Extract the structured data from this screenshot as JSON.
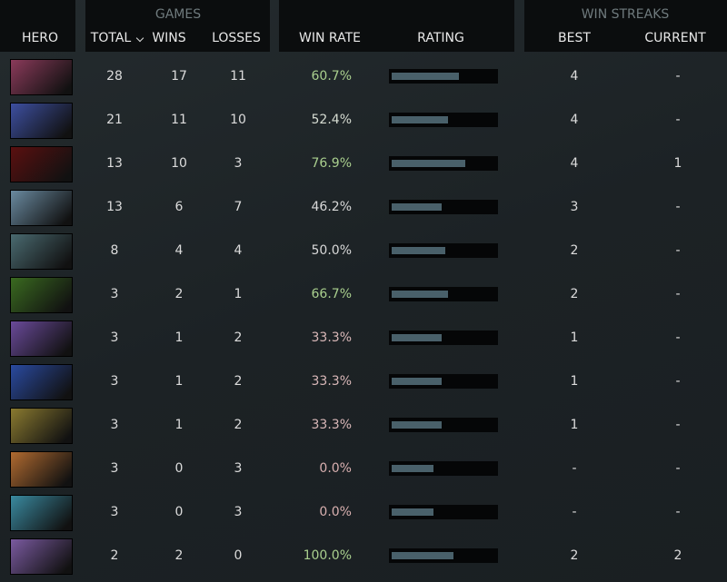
{
  "header": {
    "groups": [
      "GAMES",
      "WIN STREAKS"
    ],
    "columns": [
      "HERO",
      "TOTAL",
      "WINS",
      "LOSSES",
      "WIN RATE",
      "RATING",
      "BEST",
      "CURRENT"
    ]
  },
  "table": {
    "rows": [
      {
        "total": 28,
        "wins": 17,
        "losses": 11,
        "win_rate": "60.7%",
        "win_rate_color": "#a9cf8e",
        "rating": 0.63,
        "best": "4",
        "current": "-"
      },
      {
        "total": 21,
        "wins": 11,
        "losses": 10,
        "win_rate": "52.4%",
        "win_rate_color": "#d6dcd2",
        "rating": 0.53,
        "best": "4",
        "current": "-"
      },
      {
        "total": 13,
        "wins": 10,
        "losses": 3,
        "win_rate": "76.9%",
        "win_rate_color": "#a9cf8e",
        "rating": 0.69,
        "best": "4",
        "current": "1"
      },
      {
        "total": 13,
        "wins": 6,
        "losses": 7,
        "win_rate": "46.2%",
        "win_rate_color": "#d8d8d8",
        "rating": 0.47,
        "best": "3",
        "current": "-"
      },
      {
        "total": 8,
        "wins": 4,
        "losses": 4,
        "win_rate": "50.0%",
        "win_rate_color": "#d8d8d8",
        "rating": 0.5,
        "best": "2",
        "current": "-"
      },
      {
        "total": 3,
        "wins": 2,
        "losses": 1,
        "win_rate": "66.7%",
        "win_rate_color": "#a9cf8e",
        "rating": 0.53,
        "best": "2",
        "current": "-"
      },
      {
        "total": 3,
        "wins": 1,
        "losses": 2,
        "win_rate": "33.3%",
        "win_rate_color": "#d9b8b8",
        "rating": 0.47,
        "best": "1",
        "current": "-"
      },
      {
        "total": 3,
        "wins": 1,
        "losses": 2,
        "win_rate": "33.3%",
        "win_rate_color": "#d9b8b8",
        "rating": 0.47,
        "best": "1",
        "current": "-"
      },
      {
        "total": 3,
        "wins": 1,
        "losses": 2,
        "win_rate": "33.3%",
        "win_rate_color": "#d9b8b8",
        "rating": 0.47,
        "best": "1",
        "current": "-"
      },
      {
        "total": 3,
        "wins": 0,
        "losses": 3,
        "win_rate": "0.0%",
        "win_rate_color": "#d9b0b0",
        "rating": 0.39,
        "best": "-",
        "current": "-"
      },
      {
        "total": 3,
        "wins": 0,
        "losses": 3,
        "win_rate": "0.0%",
        "win_rate_color": "#d9b0b0",
        "rating": 0.39,
        "best": "-",
        "current": "-"
      },
      {
        "total": 2,
        "wins": 2,
        "losses": 0,
        "win_rate": "100.0%",
        "win_rate_color": "#a9cf8e",
        "rating": 0.58,
        "best": "2",
        "current": "2"
      }
    ]
  }
}
